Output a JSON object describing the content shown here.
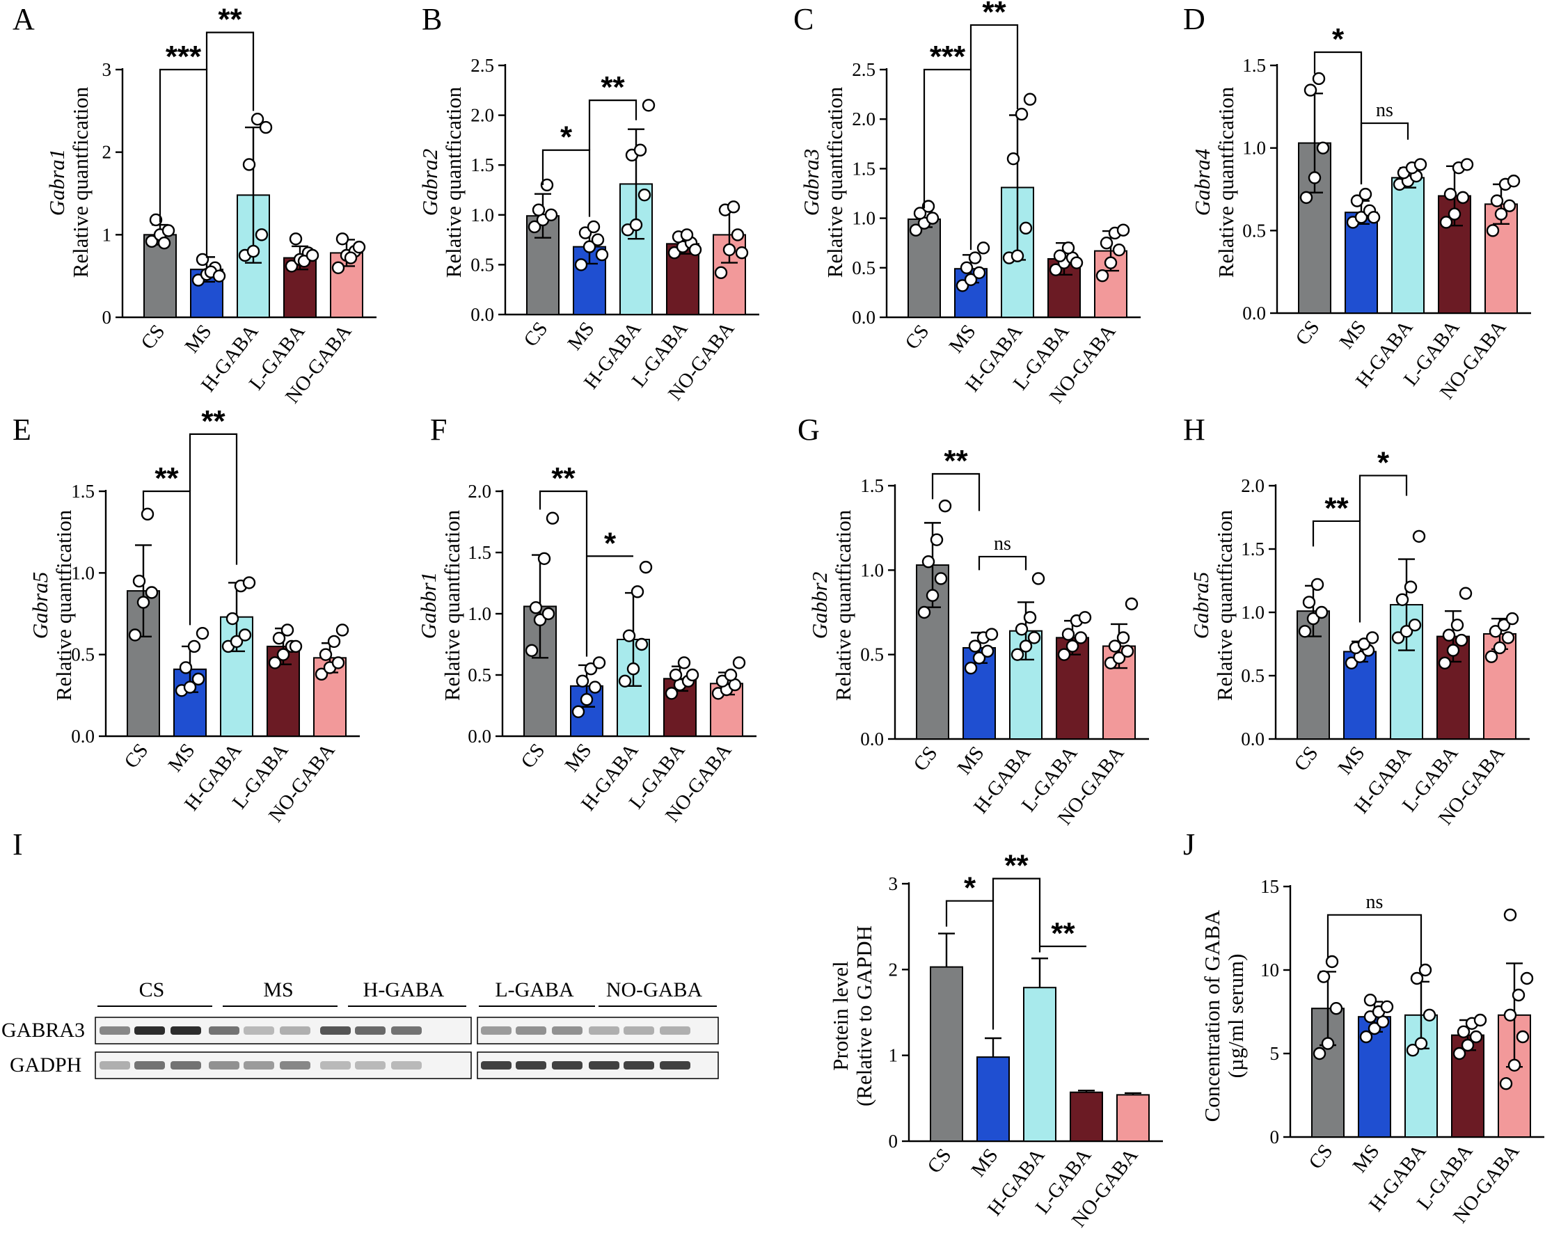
{
  "colors": {
    "CS": "#7d7f80",
    "MS": "#1f4fd1",
    "H-GABA": "#a8eaec",
    "L-GABA": "#6b1b24",
    "NO-GABA": "#f2999a"
  },
  "categories": [
    "CS",
    "MS",
    "H-GABA",
    "L-GABA",
    "NO-GABA"
  ],
  "chart_data": [
    {
      "id": "A",
      "panel_label": "A",
      "type": "bar",
      "gene": "Gabra1",
      "ylabel": "Relative quantfication",
      "ylim": [
        0,
        3
      ],
      "yticks": [
        "0",
        "1",
        "2",
        "3"
      ],
      "ytick_values": [
        0,
        1,
        2,
        3
      ],
      "categories": [
        "CS",
        "MS",
        "H-GABA",
        "L-GABA",
        "NO-GABA"
      ],
      "values": [
        1.0,
        0.58,
        1.48,
        0.72,
        0.78
      ],
      "errors": [
        0.12,
        0.15,
        0.82,
        0.14,
        0.16
      ],
      "points": [
        [
          0.92,
          1.0,
          1.05,
          1.18,
          0.9
        ],
        [
          0.45,
          0.52,
          0.6,
          0.7,
          0.55,
          0.5
        ],
        [
          0.75,
          0.8,
          1.0,
          1.85,
          2.4,
          2.3
        ],
        [
          0.62,
          0.7,
          0.78,
          0.95,
          0.68,
          0.75
        ],
        [
          0.6,
          0.75,
          0.8,
          0.95,
          0.72,
          0.85
        ]
      ],
      "annotations": [
        {
          "from": 0,
          "to": 1,
          "level": 3,
          "drop_from": 1.15,
          "drop_to": 0.72,
          "label": "***"
        },
        {
          "from": 1,
          "to": 2,
          "level": 3.45,
          "drop_from": 3.0,
          "drop_to": 2.5,
          "label": "**"
        }
      ]
    },
    {
      "id": "B",
      "panel_label": "B",
      "type": "bar",
      "gene": "Gabra2",
      "ylabel": "Relative quantfication",
      "ylim": [
        0,
        2.5
      ],
      "yticks": [
        "0.0",
        "0.5",
        "1.0",
        "1.5",
        "2.0",
        "2.5"
      ],
      "ytick_values": [
        0,
        0.5,
        1.0,
        1.5,
        2.0,
        2.5
      ],
      "categories": [
        "CS",
        "MS",
        "H-GABA",
        "L-GABA",
        "NO-GABA"
      ],
      "values": [
        0.99,
        0.68,
        1.31,
        0.71,
        0.8
      ],
      "errors": [
        0.22,
        0.17,
        0.55,
        0.1,
        0.28
      ],
      "points": [
        [
          0.88,
          0.95,
          1.0,
          1.05,
          1.3
        ],
        [
          0.5,
          0.68,
          0.75,
          0.82,
          0.88,
          0.6
        ],
        [
          0.85,
          0.9,
          1.2,
          1.6,
          1.65,
          2.1
        ],
        [
          0.62,
          0.68,
          0.72,
          0.78,
          0.8,
          0.65
        ],
        [
          0.42,
          0.65,
          0.8,
          1.05,
          1.08,
          0.62
        ]
      ],
      "annotations": [
        {
          "from": 0,
          "to": 1,
          "level": 1.65,
          "drop_from": 1.3,
          "drop_to": 0.98,
          "label": "*"
        },
        {
          "from": 1,
          "to": 2,
          "level": 2.15,
          "drop_from": 1.65,
          "drop_to": 1.95,
          "label": "**"
        }
      ]
    },
    {
      "id": "C",
      "panel_label": "C",
      "type": "bar",
      "gene": "Gabra3",
      "ylabel": "Relative quantfication",
      "ylim": [
        0,
        2.5
      ],
      "yticks": [
        "0.0",
        "0.5",
        "1.0",
        "1.5",
        "2.0",
        "2.5"
      ],
      "ytick_values": [
        0,
        0.5,
        1.0,
        1.5,
        2.0,
        2.5
      ],
      "categories": [
        "CS",
        "MS",
        "H-GABA",
        "L-GABA",
        "NO-GABA"
      ],
      "values": [
        0.99,
        0.49,
        1.31,
        0.59,
        0.67
      ],
      "errors": [
        0.08,
        0.14,
        0.73,
        0.16,
        0.2
      ],
      "points": [
        [
          0.88,
          0.95,
          1.0,
          1.05,
          1.12
        ],
        [
          0.32,
          0.38,
          0.45,
          0.5,
          0.6,
          0.7
        ],
        [
          0.6,
          0.62,
          0.9,
          1.6,
          2.05,
          2.2
        ],
        [
          0.48,
          0.55,
          0.6,
          0.62,
          0.7,
          0.55
        ],
        [
          0.42,
          0.55,
          0.68,
          0.75,
          0.85,
          0.88
        ]
      ],
      "annotations": [
        {
          "from": 0,
          "to": 1,
          "level": 2.5,
          "drop_from": 1.1,
          "drop_to": 0.68,
          "label": "***"
        },
        {
          "from": 1,
          "to": 2,
          "level": 2.95,
          "drop_from": 2.5,
          "drop_to": 2.1,
          "label": "**"
        }
      ]
    },
    {
      "id": "D",
      "panel_label": "D",
      "type": "bar",
      "gene": "Gabra4",
      "ylabel": "Relative quantfication",
      "ylim": [
        0,
        1.5
      ],
      "yticks": [
        "0.0",
        "0.5",
        "1.0",
        "1.5"
      ],
      "ytick_values": [
        0,
        0.5,
        1.0,
        1.5
      ],
      "categories": [
        "CS",
        "MS",
        "H-GABA",
        "L-GABA",
        "NO-GABA"
      ],
      "values": [
        1.03,
        0.61,
        0.82,
        0.71,
        0.66
      ],
      "errors": [
        0.3,
        0.07,
        0.06,
        0.18,
        0.12
      ],
      "points": [
        [
          0.7,
          0.82,
          1.0,
          1.35,
          1.42
        ],
        [
          0.55,
          0.58,
          0.62,
          0.68,
          0.72,
          0.58
        ],
        [
          0.78,
          0.8,
          0.83,
          0.85,
          0.88,
          0.9
        ],
        [
          0.55,
          0.6,
          0.7,
          0.72,
          0.88,
          0.9
        ],
        [
          0.5,
          0.6,
          0.65,
          0.68,
          0.78,
          0.8
        ]
      ],
      "annotations": [
        {
          "from": 0,
          "to": 1,
          "level": 1.58,
          "drop_from": 1.45,
          "drop_to": 0.78,
          "label": "*"
        },
        {
          "from": 1,
          "to": 2,
          "level": 1.15,
          "drop_from": 0.78,
          "drop_to": 1.05,
          "label": "ns"
        }
      ]
    },
    {
      "id": "E",
      "panel_label": "E",
      "type": "bar",
      "gene": "Gabra5",
      "ylabel": "Relative quantfication",
      "ylim": [
        0,
        1.5
      ],
      "yticks": [
        "0.0",
        "0.5",
        "1.0",
        "1.5"
      ],
      "ytick_values": [
        0,
        0.5,
        1.0,
        1.5
      ],
      "categories": [
        "CS",
        "MS",
        "H-GABA",
        "L-GABA",
        "NO-GABA"
      ],
      "values": [
        0.89,
        0.41,
        0.73,
        0.55,
        0.48
      ],
      "errors": [
        0.28,
        0.14,
        0.21,
        0.11,
        0.09
      ],
      "points": [
        [
          0.62,
          0.82,
          0.88,
          0.95,
          1.36
        ],
        [
          0.28,
          0.3,
          0.35,
          0.42,
          0.55,
          0.63
        ],
        [
          0.55,
          0.58,
          0.62,
          0.72,
          0.92,
          0.94
        ],
        [
          0.45,
          0.5,
          0.55,
          0.6,
          0.65,
          0.55
        ],
        [
          0.38,
          0.42,
          0.45,
          0.5,
          0.58,
          0.65
        ]
      ],
      "annotations": [
        {
          "from": 0,
          "to": 1,
          "level": 1.5,
          "drop_from": 1.38,
          "drop_to": 0.68,
          "label": "**"
        },
        {
          "from": 1,
          "to": 2,
          "level": 1.85,
          "drop_from": 1.5,
          "drop_to": 1.05,
          "label": "**"
        }
      ]
    },
    {
      "id": "F",
      "panel_label": "F",
      "type": "bar",
      "gene": "Gabbr1",
      "ylabel": "Relative quantfication",
      "ylim": [
        0,
        2.0
      ],
      "yticks": [
        "0.0",
        "0.5",
        "1.0",
        "1.5",
        "2.0"
      ],
      "ytick_values": [
        0,
        0.5,
        1.0,
        1.5,
        2.0
      ],
      "categories": [
        "CS",
        "MS",
        "H-GABA",
        "L-GABA",
        "NO-GABA"
      ],
      "values": [
        1.06,
        0.41,
        0.79,
        0.47,
        0.43
      ],
      "errors": [
        0.42,
        0.17,
        0.38,
        0.1,
        0.09
      ],
      "points": [
        [
          0.7,
          0.95,
          1.0,
          1.05,
          1.45,
          1.78
        ],
        [
          0.2,
          0.3,
          0.4,
          0.45,
          0.55,
          0.6
        ],
        [
          0.45,
          0.55,
          0.75,
          0.82,
          1.18,
          1.38
        ],
        [
          0.35,
          0.42,
          0.45,
          0.5,
          0.6,
          0.5
        ],
        [
          0.35,
          0.38,
          0.42,
          0.45,
          0.5,
          0.6
        ]
      ],
      "annotations": [
        {
          "from": 0,
          "to": 1,
          "level": 2.0,
          "drop_from": 1.85,
          "drop_to": 0.65,
          "label": "**"
        },
        {
          "from": 1,
          "to": 2,
          "level": 1.47,
          "drop_from": null,
          "drop_to": null,
          "label": "*"
        }
      ]
    },
    {
      "id": "G",
      "panel_label": "G",
      "type": "bar",
      "gene": "Gabbr2",
      "ylabel": "Relative quantfication",
      "ylim": [
        0,
        1.5
      ],
      "yticks": [
        "0.0",
        "0.5",
        "1.0",
        "1.5"
      ],
      "ytick_values": [
        0,
        0.5,
        1.0,
        1.5
      ],
      "categories": [
        "CS",
        "MS",
        "H-GABA",
        "L-GABA",
        "NO-GABA"
      ],
      "values": [
        1.03,
        0.54,
        0.64,
        0.6,
        0.55
      ],
      "errors": [
        0.25,
        0.09,
        0.17,
        0.1,
        0.13
      ],
      "points": [
        [
          0.75,
          0.85,
          0.95,
          1.05,
          1.18,
          1.38
        ],
        [
          0.42,
          0.48,
          0.52,
          0.55,
          0.6,
          0.62
        ],
        [
          0.5,
          0.55,
          0.6,
          0.65,
          0.72,
          0.95
        ],
        [
          0.5,
          0.55,
          0.6,
          0.62,
          0.7,
          0.72
        ],
        [
          0.45,
          0.48,
          0.52,
          0.55,
          0.6,
          0.8
        ]
      ],
      "annotations": [
        {
          "from": 0,
          "to": 1,
          "level": 1.57,
          "drop_from": 1.42,
          "drop_to": 1.35,
          "label": "**"
        },
        {
          "from": 1,
          "to": 2,
          "level": 1.08,
          "drop_from": 1.0,
          "drop_to": 1.0,
          "label": "ns"
        }
      ]
    },
    {
      "id": "H",
      "panel_label": "H",
      "type": "bar",
      "gene": "Gabra5",
      "ylabel": "Relative quantfication",
      "ylim": [
        0,
        2.0
      ],
      "yticks": [
        "0.0",
        "0.5",
        "1.0",
        "1.5",
        "2.0"
      ],
      "ytick_values": [
        0,
        0.5,
        1.0,
        1.5,
        2.0
      ],
      "categories": [
        "CS",
        "MS",
        "H-GABA",
        "L-GABA",
        "NO-GABA"
      ],
      "values": [
        1.01,
        0.69,
        1.06,
        0.81,
        0.83
      ],
      "errors": [
        0.2,
        0.08,
        0.36,
        0.2,
        0.12
      ],
      "points": [
        [
          0.85,
          0.95,
          1.0,
          1.08,
          1.22
        ],
        [
          0.6,
          0.65,
          0.7,
          0.72,
          0.75,
          0.8
        ],
        [
          0.8,
          0.85,
          0.9,
          1.1,
          1.2,
          1.6
        ],
        [
          0.6,
          0.7,
          0.78,
          0.82,
          0.9,
          1.15
        ],
        [
          0.65,
          0.72,
          0.8,
          0.85,
          0.9,
          0.95
        ]
      ],
      "annotations": [
        {
          "from": 0,
          "to": 1,
          "level": 1.72,
          "drop_from": 1.52,
          "drop_to": 0.92,
          "label": "**"
        },
        {
          "from": 1,
          "to": 2,
          "level": 2.08,
          "drop_from": 1.72,
          "drop_to": 1.92,
          "label": "*"
        }
      ]
    },
    {
      "id": "I",
      "panel_label": "I",
      "type": "bar",
      "gene": "",
      "ylabel": "Protein level",
      "ylabel2": "(Relative to GAPDH",
      "ylim": [
        0,
        3
      ],
      "yticks": [
        "0",
        "1",
        "2",
        "3"
      ],
      "ytick_values": [
        0,
        1,
        2,
        3
      ],
      "categories": [
        "CS",
        "MS",
        "H-GABA",
        "L-GABA",
        "NO-GABA"
      ],
      "values": [
        2.03,
        0.98,
        1.79,
        0.57,
        0.54
      ],
      "errors": [
        0.39,
        0.22,
        0.34,
        0.02,
        0.02
      ],
      "points": [],
      "annotations": [
        {
          "from": 0,
          "to": 1,
          "level": 2.8,
          "drop_from": 2.5,
          "drop_to": 1.3,
          "label": "*"
        },
        {
          "from": 1,
          "to": 2,
          "level": 3.06,
          "drop_from": 2.8,
          "drop_to": 2.2,
          "label": "**"
        },
        {
          "from": 2,
          "to": 3,
          "level": 2.27,
          "drop_from": 2.27,
          "drop_to": 2.27,
          "label": "**"
        }
      ]
    },
    {
      "id": "J",
      "panel_label": "J",
      "type": "bar",
      "gene": "",
      "ylabel": "Concentration of GABA",
      "ylabel2": "(µg/ml serum)",
      "ylim": [
        0,
        15
      ],
      "yticks": [
        "0",
        "5",
        "10",
        "15"
      ],
      "ytick_values": [
        0,
        5,
        10,
        15
      ],
      "categories": [
        "CS",
        "MS",
        "H-GABA",
        "L-GABA",
        "NO-GABA"
      ],
      "values": [
        7.7,
        7.2,
        7.3,
        6.1,
        7.3
      ],
      "errors": [
        2.2,
        0.9,
        2.0,
        0.9,
        3.1
      ],
      "points": [
        [
          5.0,
          5.6,
          7.7,
          9.6,
          10.5
        ],
        [
          6.0,
          6.5,
          6.9,
          7.2,
          7.5,
          7.8,
          8.2
        ],
        [
          5.2,
          5.6,
          7.3,
          9.5,
          10.0
        ],
        [
          5.0,
          5.5,
          6.0,
          6.3,
          6.8,
          7.0
        ],
        [
          3.2,
          4.3,
          6.0,
          7.3,
          8.5,
          9.5,
          13.3
        ]
      ],
      "annotations": [
        {
          "from": 0,
          "to": 2,
          "level": 13.3,
          "drop_from": 10.7,
          "drop_to": 10.2,
          "label": "ns"
        }
      ]
    }
  ],
  "blot": {
    "panel_label": "I",
    "group_labels": [
      "CS",
      "MS",
      "H-GABA",
      "L-GABA",
      "NO-GABA"
    ],
    "rows": [
      "GABRA3",
      "GADPH"
    ],
    "gabra3_intensity": [
      0.5,
      0.95,
      0.95,
      0.6,
      0.25,
      0.3,
      0.75,
      0.65,
      0.6,
      0.4,
      0.45,
      0.45,
      0.3,
      0.3,
      0.3
    ],
    "gadph_intensity": [
      0.3,
      0.6,
      0.6,
      0.45,
      0.4,
      0.5,
      0.25,
      0.25,
      0.25,
      0.85,
      0.85,
      0.85,
      0.85,
      0.85,
      0.85
    ]
  }
}
